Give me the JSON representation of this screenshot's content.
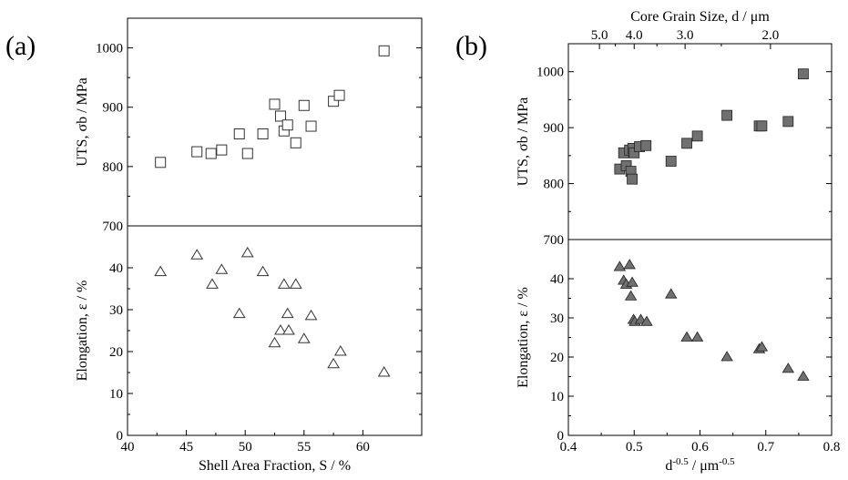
{
  "panels": {
    "a": {
      "label": "(a)"
    },
    "b": {
      "label": "(b)"
    }
  },
  "chart_data": [
    {
      "id": "a-top",
      "type": "scatter",
      "ylabel": "UTS, σb / MPa",
      "xlim": [
        40,
        65
      ],
      "ylim": [
        700,
        1050
      ],
      "yticks": [
        700,
        800,
        900,
        1000
      ],
      "series": [
        {
          "marker": "open-square",
          "x": [
            42.8,
            45.9,
            47.1,
            48.0,
            49.5,
            50.2,
            51.5,
            52.5,
            53.0,
            53.3,
            53.6,
            54.3,
            55.0,
            55.6,
            57.5,
            58.0,
            61.8
          ],
          "y": [
            807,
            825,
            822,
            828,
            855,
            822,
            855,
            905,
            885,
            860,
            870,
            840,
            903,
            868,
            910,
            920,
            995
          ]
        }
      ]
    },
    {
      "id": "a-bottom",
      "type": "scatter",
      "xlabel": "Shell Area Fraction, S / %",
      "ylabel": "Elongation, ε / %",
      "xlim": [
        40,
        65
      ],
      "ylim": [
        0,
        50
      ],
      "xticks": [
        40,
        45,
        50,
        55,
        60
      ],
      "yticks": [
        0,
        10,
        20,
        30,
        40
      ],
      "series": [
        {
          "marker": "open-triangle",
          "x": [
            42.8,
            45.9,
            47.2,
            48.0,
            49.5,
            50.2,
            51.5,
            52.5,
            53.0,
            53.3,
            53.6,
            53.7,
            54.3,
            55.0,
            55.6,
            57.5,
            58.1,
            61.8
          ],
          "y": [
            39,
            43,
            36,
            39.5,
            29,
            43.5,
            39,
            22,
            25,
            36,
            29,
            25,
            36,
            23,
            28.5,
            17,
            20,
            15
          ]
        }
      ]
    },
    {
      "id": "b-top",
      "type": "scatter",
      "xlabel_top": "Core Grain Size, d / μm",
      "ylabel": "UTS, σb / MPa",
      "xlim": [
        0.4,
        0.8
      ],
      "ylim": [
        700,
        1050
      ],
      "top_ticks": [
        "5.0",
        "4.0",
        "3.0",
        "2.0"
      ],
      "top_tick_values": [
        5.0,
        4.0,
        3.0,
        2.0
      ],
      "yticks": [
        700,
        800,
        900,
        1000
      ],
      "series": [
        {
          "marker": "filled-square",
          "x": [
            0.478,
            0.484,
            0.488,
            0.493,
            0.495,
            0.497,
            0.498,
            0.5,
            0.508,
            0.518,
            0.556,
            0.58,
            0.596,
            0.641,
            0.69,
            0.694,
            0.734,
            0.757
          ],
          "y": [
            826,
            855,
            832,
            860,
            822,
            808,
            863,
            855,
            866,
            868,
            840,
            872,
            885,
            922,
            903,
            903,
            911,
            996
          ]
        }
      ]
    },
    {
      "id": "b-bottom",
      "type": "scatter",
      "xlabel": "d-0.5 / μm-0.5",
      "ylabel": "Elongation, ε / %",
      "xlim": [
        0.4,
        0.8
      ],
      "ylim": [
        0,
        50
      ],
      "xticks": [
        0.4,
        0.5,
        0.6,
        0.7,
        0.8
      ],
      "yticks": [
        0,
        10,
        20,
        30,
        40
      ],
      "series": [
        {
          "marker": "filled-triangle",
          "x": [
            0.478,
            0.484,
            0.488,
            0.493,
            0.495,
            0.497,
            0.499,
            0.501,
            0.51,
            0.519,
            0.556,
            0.58,
            0.596,
            0.641,
            0.69,
            0.694,
            0.734,
            0.757
          ],
          "y": [
            43,
            39.5,
            38.5,
            43.5,
            35.5,
            39,
            29.5,
            29,
            29.5,
            29,
            36,
            25,
            25,
            20,
            22,
            22.5,
            17,
            15
          ]
        }
      ]
    }
  ]
}
